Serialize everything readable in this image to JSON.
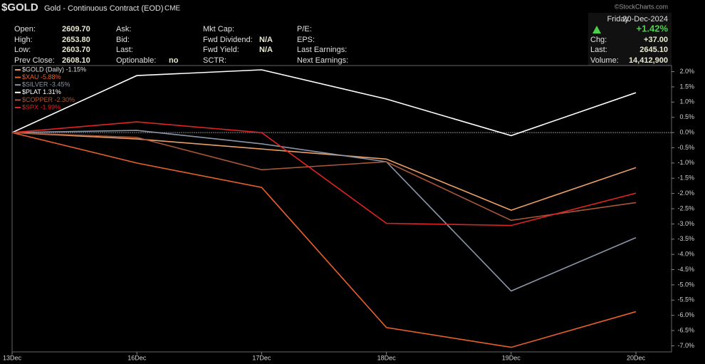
{
  "header": {
    "symbol": "$GOLD",
    "description": "Gold - Continuous Contract (EOD)",
    "exchange": "CME",
    "columns": [
      [
        {
          "label": "Open:",
          "value": "2609.70"
        },
        {
          "label": "High:",
          "value": "2653.80"
        },
        {
          "label": "Low:",
          "value": "2603.70"
        },
        {
          "label": "Prev Close:",
          "value": "2608.10"
        }
      ],
      [
        {
          "label": "Ask:"
        },
        {
          "label": "Bid:"
        },
        {
          "label": "Last:"
        },
        {
          "label": "Optionable:",
          "value": "no"
        }
      ],
      [
        {
          "label": "Mkt Cap:"
        },
        {
          "label": "Fwd Dividend:",
          "value": "N/A"
        },
        {
          "label": "Fwd Yield:",
          "value": "N/A"
        },
        {
          "label": "SCTR:"
        }
      ],
      [
        {
          "label": "P/E:"
        },
        {
          "label": "EPS:"
        },
        {
          "label": "Last Earnings:"
        },
        {
          "label": "Next Earnings:"
        }
      ]
    ],
    "day": "Friday",
    "date": "20-Dec-2024",
    "change_pct": "+1.42%",
    "quote": [
      {
        "label": "Chg:",
        "value": "+37.00"
      },
      {
        "label": "Last:",
        "value": "2645.10"
      },
      {
        "label": "Volume:",
        "value": "14,412,900"
      }
    ],
    "credit": "©StockCharts.com"
  },
  "chart_data": {
    "type": "line",
    "categories": [
      "13Dec",
      "16Dec",
      "17Dec",
      "18Dec",
      "19Dec",
      "20Dec"
    ],
    "series": [
      {
        "name": "$GOLD (Daily) -1.15%",
        "color": "#e8a068",
        "values": [
          0,
          -0.21,
          -0.54,
          -0.87,
          -2.55,
          -1.15
        ]
      },
      {
        "name": "$XAU -5.88%",
        "color": "#e8602c",
        "values": [
          0,
          -1.0,
          -1.8,
          -6.4,
          -7.05,
          -5.88
        ]
      },
      {
        "name": "$SILVER -3.45%",
        "color": "#8a96a8",
        "values": [
          0,
          0.07,
          -0.37,
          -0.96,
          -5.2,
          -3.45
        ]
      },
      {
        "name": "$PLAT 1.31%",
        "color": "#ffffff",
        "values": [
          0,
          1.87,
          2.06,
          1.1,
          -0.1,
          1.31
        ]
      },
      {
        "name": "$COPPER -2.30%",
        "color": "#a8583a",
        "values": [
          0,
          -0.16,
          -1.22,
          -0.96,
          -2.88,
          -2.3
        ]
      },
      {
        "name": "$SPX -1.99%",
        "color": "#e02424",
        "values": [
          0,
          0.35,
          0,
          -2.98,
          -3.05,
          -1.99
        ]
      }
    ],
    "ylim": [
      -7.2,
      2.2
    ],
    "yticks": [
      {
        "value": 2,
        "label": "2.0%"
      },
      {
        "value": 1.5,
        "label": "1.5%"
      },
      {
        "value": 1,
        "label": "1.0%"
      },
      {
        "value": 0.5,
        "label": "0.5%"
      },
      {
        "value": 0,
        "label": "0.0%"
      },
      {
        "value": -0.5,
        "label": "-0.5%"
      },
      {
        "value": -1,
        "label": "-1.0%"
      },
      {
        "value": -1.5,
        "label": "-1.5%"
      },
      {
        "value": -2,
        "label": "-2.0%"
      },
      {
        "value": -2.5,
        "label": "-2.5%"
      },
      {
        "value": -3,
        "label": "-3.0%"
      },
      {
        "value": -3.5,
        "label": "-3.5%"
      },
      {
        "value": -4,
        "label": "-4.0%"
      },
      {
        "value": -4.5,
        "label": "-4.5%"
      },
      {
        "value": -5,
        "label": "-5.0%"
      },
      {
        "value": -5.5,
        "label": "-5.5%"
      },
      {
        "value": -6,
        "label": "-6.0%"
      },
      {
        "value": -6.5,
        "label": "-6.5%"
      },
      {
        "value": -7,
        "label": "-7.0%"
      }
    ]
  }
}
